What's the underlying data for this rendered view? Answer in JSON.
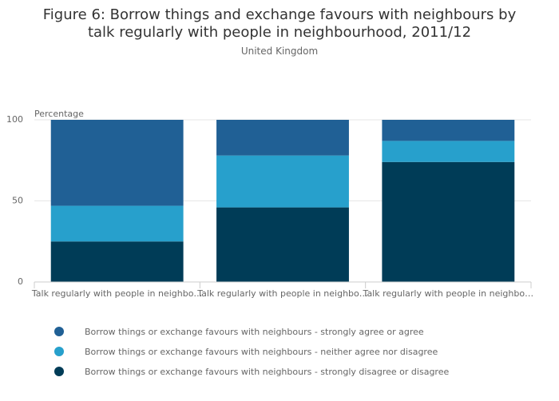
{
  "chart_data": {
    "type": "stacked_bar",
    "title": "Figure 6: Borrow things and exchange favours with neighbours by talk regularly with people in neighbourhood, 2011/12",
    "subtitle": "United Kingdom",
    "y_label": "Percentage",
    "categories": [
      "Talk regularly with people in neighbo…",
      "Talk regularly with people in neighbo…",
      "Talk regularly with people in neighbo…"
    ],
    "series": [
      {
        "name": "Borrow things or exchange favours with neighbours - strongly agree or agree",
        "color": "#206095",
        "values": [
          53,
          22,
          13
        ]
      },
      {
        "name": "Borrow things or exchange favours with neighbours - neither agree nor disagree",
        "color": "#27a0cc",
        "values": [
          22,
          32,
          13
        ]
      },
      {
        "name": "Borrow things or exchange favours with neighbours - strongly disagree or disagree",
        "color": "#003c57",
        "values": [
          25,
          46,
          74
        ]
      }
    ],
    "ylim": [
      0,
      100
    ],
    "yticks": [
      0,
      50,
      100
    ],
    "grid": true
  }
}
